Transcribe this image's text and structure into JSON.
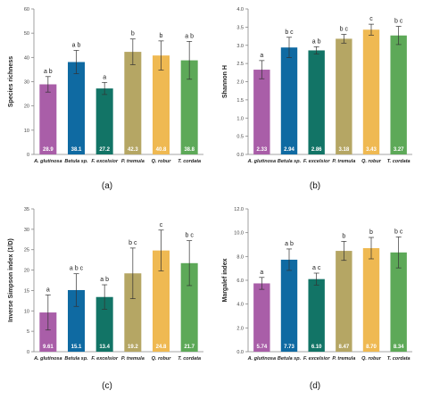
{
  "colors": {
    "A. glutinosa": "#a95ea8",
    "Betula sp.": "#0f6aa2",
    "F. excelsior": "#127466",
    "P. tremula": "#b5a664",
    "Q. robur": "#efb952",
    "T. cordata": "#5da958",
    "value_label": "#ffffff",
    "letter": "#222222",
    "axis": "#888888"
  },
  "chart_data": [
    {
      "type": "bar",
      "panel_label": "(a)",
      "ylabel": "Species richness",
      "ylim": [
        0,
        60
      ],
      "yticks": [
        0,
        10,
        20,
        30,
        40,
        50,
        60
      ],
      "ytick_labels": [
        "0",
        "10",
        "20",
        "30",
        "40",
        "50",
        "60"
      ],
      "categories": [
        "A. glutinosa",
        "Betula sp.",
        "F. excelsior",
        "P. tremula",
        "Q. robur",
        "T. cordata"
      ],
      "values": [
        28.9,
        38.1,
        27.2,
        42.3,
        40.8,
        38.8
      ],
      "value_labels": [
        "28.9",
        "38.1",
        "27.2",
        "42.3",
        "40.8",
        "38.8"
      ],
      "errors": [
        3.2,
        4.8,
        2.5,
        5.3,
        6.0,
        7.8
      ],
      "letters": [
        "a b",
        "a b",
        "a",
        "b",
        "b",
        "a b"
      ]
    },
    {
      "type": "bar",
      "panel_label": "(b)",
      "ylabel": "Shannon H",
      "ylim": [
        0,
        4
      ],
      "yticks": [
        0,
        0.5,
        1,
        1.5,
        2,
        2.5,
        3,
        3.5,
        4
      ],
      "ytick_labels": [
        "0.0",
        "0.5",
        "1.0",
        "1.5",
        "2.0",
        "2.5",
        "3.0",
        "3.5",
        "4.0"
      ],
      "categories": [
        "A. glutinosa",
        "Betula sp.",
        "F. excelsior",
        "P. tremula",
        "Q. robur",
        "T. cordata"
      ],
      "values": [
        2.33,
        2.94,
        2.86,
        3.18,
        3.43,
        3.27
      ],
      "value_labels": [
        "2.33",
        "2.94",
        "2.86",
        "3.18",
        "3.43",
        "3.27"
      ],
      "errors": [
        0.25,
        0.28,
        0.1,
        0.12,
        0.15,
        0.25
      ],
      "letters": [
        "a",
        "b c",
        "a b",
        "b c",
        "c",
        "b c"
      ]
    },
    {
      "type": "bar",
      "panel_label": "(c)",
      "ylabel": "Inverse Simpson index (1/D)",
      "ylim": [
        0,
        35
      ],
      "yticks": [
        0,
        5,
        10,
        15,
        20,
        25,
        30,
        35
      ],
      "ytick_labels": [
        "0",
        "5",
        "10",
        "15",
        "20",
        "25",
        "30",
        "35"
      ],
      "categories": [
        "A. glutinosa",
        "Betula sp.",
        "F. excelsior",
        "P. tremula",
        "Q. robur",
        "T. cordata"
      ],
      "values": [
        9.61,
        15.1,
        13.4,
        19.2,
        24.8,
        21.7
      ],
      "value_labels": [
        "9.61",
        "15.1",
        "13.4",
        "19.2",
        "24.8",
        "21.7"
      ],
      "errors": [
        4.3,
        4.0,
        3.0,
        6.2,
        5.0,
        5.5
      ],
      "letters": [
        "a",
        "a b c",
        "a b",
        "b c",
        "c",
        "b c"
      ]
    },
    {
      "type": "bar",
      "panel_label": "(d)",
      "ylabel": "Margalef index",
      "ylim": [
        0,
        12
      ],
      "yticks": [
        0,
        2,
        4,
        6,
        8,
        10,
        12
      ],
      "ytick_labels": [
        "0.0",
        "2.0",
        "4.0",
        "6.0",
        "8.0",
        "10.0",
        "12.0"
      ],
      "categories": [
        "A. glutinosa",
        "Betula sp.",
        "F. excelsior",
        "P. tremula",
        "Q. robur",
        "T. cordata"
      ],
      "values": [
        5.74,
        7.73,
        6.1,
        8.47,
        8.7,
        8.34
      ],
      "value_labels": [
        "5.74",
        "7.73",
        "6.10",
        "8.47",
        "8.70",
        "8.34"
      ],
      "errors": [
        0.5,
        0.9,
        0.5,
        0.8,
        0.9,
        1.3
      ],
      "letters": [
        "a",
        "a b",
        "a c",
        "b",
        "b",
        "b c"
      ]
    }
  ]
}
